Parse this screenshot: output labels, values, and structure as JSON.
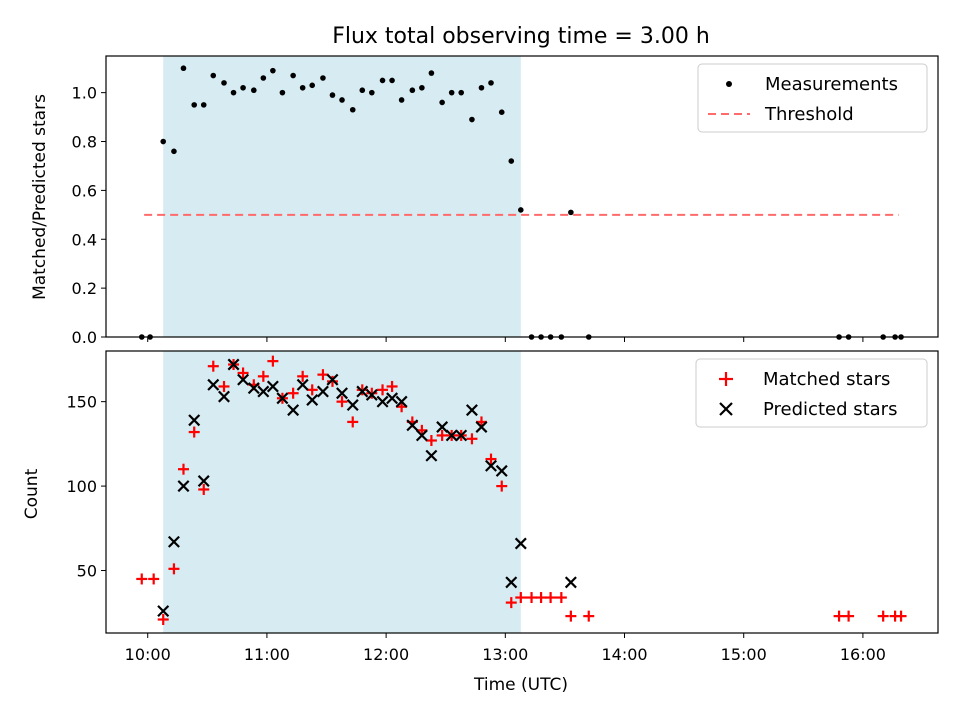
{
  "chart_data": {
    "type": "scatter",
    "title": "Flux total observing time = 3.00 h",
    "colors": {
      "shade": "#add8e6",
      "measurements": "#000000",
      "threshold": "#ff6b6b",
      "matched": "#ff0000",
      "predicted": "#000000"
    },
    "xlabel": "Time (UTC)",
    "x_unit": "hours since 00:00 UTC",
    "xlim": [
      9.65,
      16.63
    ],
    "x_ticks": [
      10,
      11,
      12,
      13,
      14,
      15,
      16
    ],
    "x_tick_labels": [
      "10:00",
      "11:00",
      "12:00",
      "13:00",
      "14:00",
      "15:00",
      "16:00"
    ],
    "shaded_interval": [
      10.13,
      13.13
    ],
    "top": {
      "ylabel": "Matched/Predicted stars",
      "ylim": [
        0,
        1.15
      ],
      "y_ticks": [
        0.0,
        0.2,
        0.4,
        0.6,
        0.8,
        1.0
      ],
      "y_tick_labels": [
        "0.0",
        "0.2",
        "0.4",
        "0.6",
        "0.8",
        "1.0"
      ],
      "legend": [
        "Measurements",
        "Threshold"
      ],
      "threshold": {
        "value": 0.5,
        "x_start": 9.97,
        "x_end": 16.3
      },
      "measurements": [
        [
          9.95,
          0.0
        ],
        [
          10.02,
          0.0
        ],
        [
          10.13,
          0.8
        ],
        [
          10.22,
          0.76
        ],
        [
          10.3,
          1.1
        ],
        [
          10.39,
          0.95
        ],
        [
          10.47,
          0.95
        ],
        [
          10.55,
          1.07
        ],
        [
          10.64,
          1.04
        ],
        [
          10.72,
          1.0
        ],
        [
          10.8,
          1.02
        ],
        [
          10.89,
          1.01
        ],
        [
          10.97,
          1.06
        ],
        [
          11.05,
          1.09
        ],
        [
          11.13,
          1.0
        ],
        [
          11.22,
          1.07
        ],
        [
          11.3,
          1.02
        ],
        [
          11.38,
          1.03
        ],
        [
          11.47,
          1.06
        ],
        [
          11.55,
          0.99
        ],
        [
          11.63,
          0.97
        ],
        [
          11.72,
          0.93
        ],
        [
          11.8,
          1.01
        ],
        [
          11.88,
          1.0
        ],
        [
          11.97,
          1.05
        ],
        [
          12.05,
          1.05
        ],
        [
          12.13,
          0.97
        ],
        [
          12.22,
          1.01
        ],
        [
          12.3,
          1.02
        ],
        [
          12.38,
          1.08
        ],
        [
          12.47,
          0.96
        ],
        [
          12.55,
          1.0
        ],
        [
          12.63,
          1.0
        ],
        [
          12.72,
          0.89
        ],
        [
          12.8,
          1.02
        ],
        [
          12.88,
          1.04
        ],
        [
          12.97,
          0.92
        ],
        [
          13.05,
          0.72
        ],
        [
          13.13,
          0.52
        ],
        [
          13.22,
          0.0
        ],
        [
          13.3,
          0.0
        ],
        [
          13.38,
          0.0
        ],
        [
          13.47,
          0.0
        ],
        [
          13.55,
          0.51
        ],
        [
          13.7,
          0.0
        ],
        [
          15.8,
          0.0
        ],
        [
          15.88,
          0.0
        ],
        [
          16.17,
          0.0
        ],
        [
          16.27,
          0.0
        ],
        [
          16.32,
          0.0
        ]
      ]
    },
    "bottom": {
      "ylabel": "Count",
      "ylim": [
        13,
        180
      ],
      "y_ticks": [
        50,
        100,
        150
      ],
      "y_tick_labels": [
        "50",
        "100",
        "150"
      ],
      "legend": [
        "Matched stars",
        "Predicted stars"
      ],
      "matched": [
        [
          9.95,
          45
        ],
        [
          10.05,
          45
        ],
        [
          10.13,
          21
        ],
        [
          10.22,
          51
        ],
        [
          10.3,
          110
        ],
        [
          10.39,
          132
        ],
        [
          10.47,
          98
        ],
        [
          10.55,
          171
        ],
        [
          10.64,
          159
        ],
        [
          10.72,
          172
        ],
        [
          10.8,
          167
        ],
        [
          10.89,
          160
        ],
        [
          10.97,
          165
        ],
        [
          11.05,
          174
        ],
        [
          11.13,
          152
        ],
        [
          11.22,
          155
        ],
        [
          11.3,
          165
        ],
        [
          11.38,
          157
        ],
        [
          11.47,
          166
        ],
        [
          11.55,
          162
        ],
        [
          11.63,
          150
        ],
        [
          11.72,
          138
        ],
        [
          11.8,
          157
        ],
        [
          11.88,
          155
        ],
        [
          11.97,
          157
        ],
        [
          12.05,
          159
        ],
        [
          12.13,
          147
        ],
        [
          12.22,
          138
        ],
        [
          12.3,
          133
        ],
        [
          12.38,
          127
        ],
        [
          12.47,
          130
        ],
        [
          12.55,
          130
        ],
        [
          12.63,
          130
        ],
        [
          12.72,
          128
        ],
        [
          12.8,
          138
        ],
        [
          12.88,
          116
        ],
        [
          12.97,
          100
        ],
        [
          13.05,
          31
        ],
        [
          13.13,
          34
        ],
        [
          13.22,
          34
        ],
        [
          13.3,
          34
        ],
        [
          13.38,
          34
        ],
        [
          13.47,
          34
        ],
        [
          13.55,
          23
        ],
        [
          13.7,
          23
        ],
        [
          15.8,
          23
        ],
        [
          15.88,
          23
        ],
        [
          16.17,
          23
        ],
        [
          16.27,
          23
        ],
        [
          16.32,
          23
        ]
      ],
      "predicted": [
        [
          10.13,
          26
        ],
        [
          10.22,
          67
        ],
        [
          10.3,
          100
        ],
        [
          10.39,
          139
        ],
        [
          10.47,
          103
        ],
        [
          10.55,
          160
        ],
        [
          10.64,
          153
        ],
        [
          10.72,
          172
        ],
        [
          10.8,
          163
        ],
        [
          10.89,
          158
        ],
        [
          10.97,
          156
        ],
        [
          11.05,
          159
        ],
        [
          11.13,
          152
        ],
        [
          11.22,
          145
        ],
        [
          11.3,
          160
        ],
        [
          11.38,
          151
        ],
        [
          11.47,
          156
        ],
        [
          11.55,
          163
        ],
        [
          11.63,
          155
        ],
        [
          11.72,
          148
        ],
        [
          11.8,
          156
        ],
        [
          11.88,
          154
        ],
        [
          11.97,
          150
        ],
        [
          12.05,
          152
        ],
        [
          12.13,
          150
        ],
        [
          12.22,
          136
        ],
        [
          12.3,
          130
        ],
        [
          12.38,
          118
        ],
        [
          12.47,
          135
        ],
        [
          12.55,
          130
        ],
        [
          12.63,
          130
        ],
        [
          12.72,
          145
        ],
        [
          12.8,
          135
        ],
        [
          12.88,
          112
        ],
        [
          12.97,
          109
        ],
        [
          13.05,
          43
        ],
        [
          13.13,
          66
        ],
        [
          13.55,
          43
        ]
      ]
    }
  }
}
